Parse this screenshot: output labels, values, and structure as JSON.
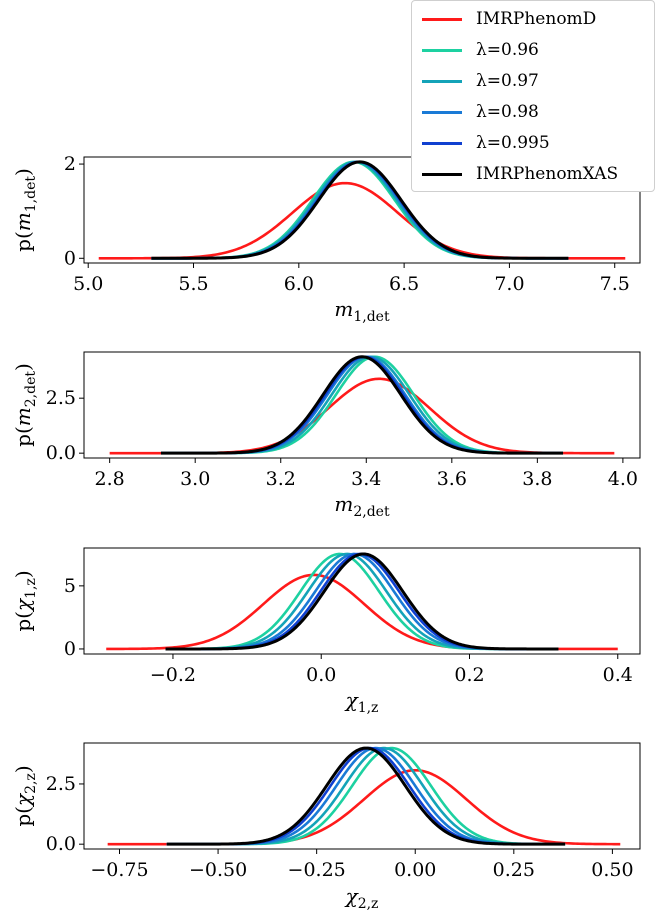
{
  "legend": [
    {
      "label": "IMRPhenomD",
      "color": "#ff1a1a"
    },
    {
      "label": "λ=0.96",
      "color": "#1dd1a1"
    },
    {
      "label": "λ=0.97",
      "color": "#14a3b8"
    },
    {
      "label": "λ=0.98",
      "color": "#1a7ad6"
    },
    {
      "label": "λ=0.995",
      "color": "#1040d0"
    },
    {
      "label": "IMRPhenomXAS",
      "color": "#000000"
    }
  ],
  "chart_data": [
    {
      "type": "line",
      "xlabel": "m1,det",
      "ylabel": "p(m1,det)",
      "xlim": [
        4.98,
        7.62
      ],
      "ylim": [
        -0.1,
        2.15
      ],
      "xticks": [
        "5.0",
        "5.5",
        "6.0",
        "6.5",
        "7.0",
        "7.5"
      ],
      "xtick_values": [
        5.0,
        5.5,
        6.0,
        6.5,
        7.0,
        7.5
      ],
      "yticks": [
        "0",
        "2"
      ],
      "ytick_values": [
        0,
        2
      ],
      "series": [
        {
          "name": "IMRPhenomD",
          "mean": 6.22,
          "sd": 0.25,
          "range": [
            5.05,
            7.55
          ]
        },
        {
          "name": "λ=0.96",
          "mean": 6.26,
          "sd": 0.195,
          "range": [
            5.3,
            7.28
          ]
        },
        {
          "name": "λ=0.97",
          "mean": 6.27,
          "sd": 0.195,
          "range": [
            5.3,
            7.28
          ]
        },
        {
          "name": "λ=0.98",
          "mean": 6.28,
          "sd": 0.195,
          "range": [
            5.3,
            7.28
          ]
        },
        {
          "name": "λ=0.995",
          "mean": 6.285,
          "sd": 0.195,
          "range": [
            5.3,
            7.28
          ]
        },
        {
          "name": "IMRPhenomXAS",
          "mean": 6.29,
          "sd": 0.195,
          "range": [
            5.3,
            7.28
          ]
        }
      ]
    },
    {
      "type": "line",
      "xlabel": "m2,det",
      "ylabel": "p(m2,det)",
      "xlim": [
        2.74,
        4.04
      ],
      "ylim": [
        -0.22,
        4.6
      ],
      "xticks": [
        "2.8",
        "3.0",
        "3.2",
        "3.4",
        "3.6",
        "3.8",
        "4.0"
      ],
      "xtick_values": [
        2.8,
        3.0,
        3.2,
        3.4,
        3.6,
        3.8,
        4.0
      ],
      "yticks": [
        "0.0",
        "2.5"
      ],
      "ytick_values": [
        0,
        2.5
      ],
      "series": [
        {
          "name": "IMRPhenomD",
          "mean": 3.43,
          "sd": 0.118,
          "range": [
            2.8,
            3.98
          ]
        },
        {
          "name": "λ=0.96",
          "mean": 3.42,
          "sd": 0.091,
          "range": [
            2.92,
            3.86
          ]
        },
        {
          "name": "λ=0.97",
          "mean": 3.41,
          "sd": 0.091,
          "range": [
            2.92,
            3.86
          ]
        },
        {
          "name": "λ=0.98",
          "mean": 3.4,
          "sd": 0.091,
          "range": [
            2.92,
            3.86
          ]
        },
        {
          "name": "λ=0.995",
          "mean": 3.395,
          "sd": 0.091,
          "range": [
            2.92,
            3.86
          ]
        },
        {
          "name": "IMRPhenomXAS",
          "mean": 3.39,
          "sd": 0.091,
          "range": [
            2.92,
            3.86
          ]
        }
      ]
    },
    {
      "type": "line",
      "xlabel": "χ1,z",
      "ylabel": "p(χ1,z)",
      "xlim": [
        -0.32,
        0.43
      ],
      "ylim": [
        -0.4,
        8.0
      ],
      "xticks": [
        "−0.2",
        "0.0",
        "0.2",
        "0.4"
      ],
      "xtick_values": [
        -0.2,
        0.0,
        0.2,
        0.4
      ],
      "yticks": [
        "0",
        "5"
      ],
      "ytick_values": [
        0,
        5
      ],
      "series": [
        {
          "name": "IMRPhenomD",
          "mean": -0.01,
          "sd": 0.068,
          "range": [
            -0.29,
            0.4
          ]
        },
        {
          "name": "λ=0.96",
          "mean": 0.025,
          "sd": 0.053,
          "range": [
            -0.21,
            0.32
          ]
        },
        {
          "name": "λ=0.97",
          "mean": 0.035,
          "sd": 0.053,
          "range": [
            -0.21,
            0.32
          ]
        },
        {
          "name": "λ=0.98",
          "mean": 0.045,
          "sd": 0.053,
          "range": [
            -0.21,
            0.32
          ]
        },
        {
          "name": "λ=0.995",
          "mean": 0.052,
          "sd": 0.053,
          "range": [
            -0.21,
            0.32
          ]
        },
        {
          "name": "IMRPhenomXAS",
          "mean": 0.057,
          "sd": 0.053,
          "range": [
            -0.21,
            0.32
          ]
        }
      ]
    },
    {
      "type": "line",
      "xlabel": "χ2,z",
      "ylabel": "p(χ2,z)",
      "xlim": [
        -0.84,
        0.57
      ],
      "ylim": [
        -0.2,
        4.2
      ],
      "xticks": [
        "−0.75",
        "−0.50",
        "−0.25",
        "0.00",
        "0.25",
        "0.50"
      ],
      "xtick_values": [
        -0.75,
        -0.5,
        -0.25,
        0.0,
        0.25,
        0.5
      ],
      "yticks": [
        "0.0",
        "2.5"
      ],
      "ytick_values": [
        0,
        2.5
      ],
      "series": [
        {
          "name": "IMRPhenomD",
          "mean": 0.0,
          "sd": 0.13,
          "range": [
            -0.78,
            0.52
          ]
        },
        {
          "name": "λ=0.96",
          "mean": -0.06,
          "sd": 0.1,
          "range": [
            -0.63,
            0.38
          ]
        },
        {
          "name": "λ=0.97",
          "mean": -0.08,
          "sd": 0.1,
          "range": [
            -0.63,
            0.38
          ]
        },
        {
          "name": "λ=0.98",
          "mean": -0.1,
          "sd": 0.1,
          "range": [
            -0.63,
            0.38
          ]
        },
        {
          "name": "λ=0.995",
          "mean": -0.115,
          "sd": 0.1,
          "range": [
            -0.63,
            0.38
          ]
        },
        {
          "name": "IMRPhenomXAS",
          "mean": -0.125,
          "sd": 0.1,
          "range": [
            -0.63,
            0.38
          ]
        }
      ]
    }
  ]
}
